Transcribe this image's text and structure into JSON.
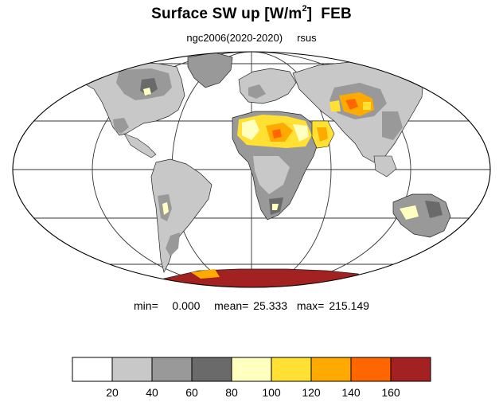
{
  "title": {
    "main": "Surface SW up [W/m",
    "sup": "2",
    "close": "]",
    "month": "FEB"
  },
  "subtitle": {
    "run": "ngc2006(2020-2020)",
    "variable": "rsus"
  },
  "stats": {
    "min_label": "min=",
    "min_value": "0.000",
    "mean_label": "mean=",
    "mean_value": "25.333",
    "max_label": "max=",
    "max_value": "215.149"
  },
  "colorbar": {
    "colors": [
      "#ffffff",
      "#c8c8c8",
      "#999999",
      "#6a6a6a",
      "#ffffc0",
      "#ffe033",
      "#ffaa00",
      "#ff6600",
      "#a42121"
    ],
    "tick_labels": [
      "20",
      "40",
      "60",
      "80",
      "100",
      "120",
      "140",
      "160"
    ]
  },
  "map": {
    "projection": "mollweide",
    "graticule_lat_deg": [
      -60,
      -30,
      0,
      30,
      60
    ],
    "graticule_lon_deg": [
      -120,
      -60,
      0,
      60,
      120
    ]
  }
}
